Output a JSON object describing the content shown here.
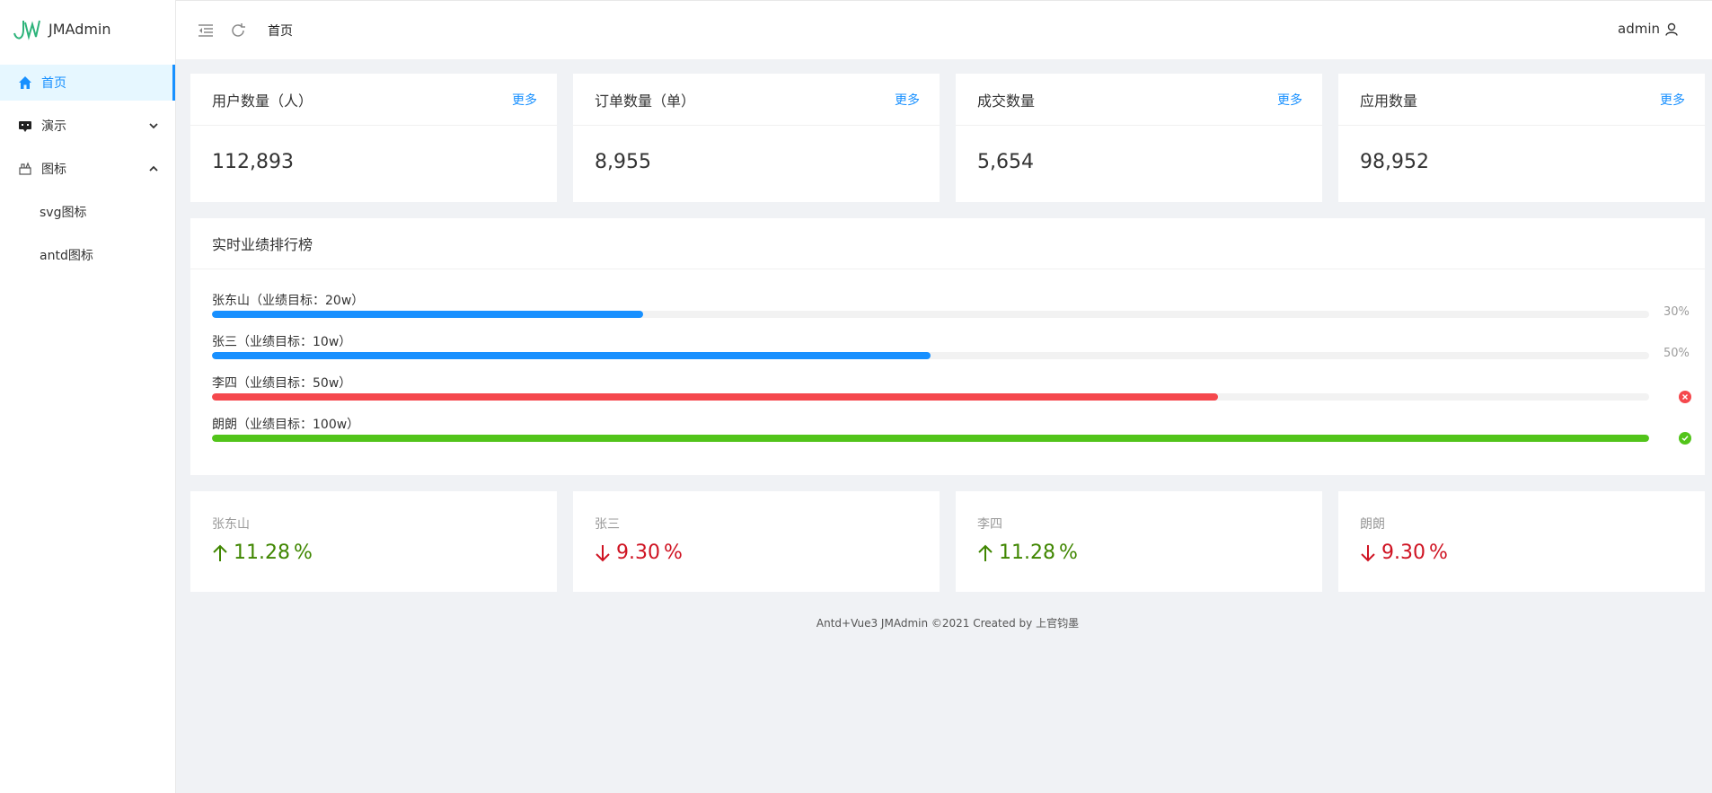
{
  "app": {
    "title": "JMAdmin"
  },
  "sidebar": {
    "items": [
      {
        "label": "首页",
        "icon": "home-icon",
        "active": true
      },
      {
        "label": "演示",
        "icon": "demo-icon",
        "expanded": false
      },
      {
        "label": "图标",
        "icon": "icons-icon",
        "expanded": true,
        "children": [
          {
            "label": "svg图标"
          },
          {
            "label": "antd图标"
          }
        ]
      }
    ]
  },
  "header": {
    "breadcrumb": "首页",
    "user": "admin",
    "icons": [
      "menu-fold-icon",
      "refresh-icon",
      "user-icon"
    ]
  },
  "stats": [
    {
      "title": "用户数量（人）",
      "more": "更多",
      "value": "112,893"
    },
    {
      "title": "订单数量（单）",
      "more": "更多",
      "value": "8,955"
    },
    {
      "title": "成交数量",
      "more": "更多",
      "value": "5,654"
    },
    {
      "title": "应用数量",
      "more": "更多",
      "value": "98,952"
    }
  ],
  "ranking": {
    "title": "实时业绩排行榜",
    "items": [
      {
        "label": "张东山（业绩目标：20w）",
        "percent": 30,
        "info": "30%",
        "status": "normal",
        "color": "#1890ff"
      },
      {
        "label": "张三（业绩目标：10w）",
        "percent": 50,
        "info": "50%",
        "status": "normal",
        "color": "#1890ff"
      },
      {
        "label": "李四（业绩目标：50w）",
        "percent": 70,
        "info": "",
        "status": "exception",
        "color": "#f5484d"
      },
      {
        "label": "朗朗（业绩目标：100w）",
        "percent": 100,
        "info": "",
        "status": "success",
        "color": "#52c41a"
      }
    ]
  },
  "trends": [
    {
      "name": "张东山",
      "value": "11.28",
      "suffix": "%",
      "direction": "up"
    },
    {
      "name": "张三",
      "value": "9.30",
      "suffix": "%",
      "direction": "down"
    },
    {
      "name": "李四",
      "value": "11.28",
      "suffix": "%",
      "direction": "up"
    },
    {
      "name": "朗朗",
      "value": "9.30",
      "suffix": "%",
      "direction": "down"
    }
  ],
  "colors": {
    "primary": "#1890ff",
    "up": "#3f8600",
    "down": "#cf1322",
    "exception": "#f5484d",
    "success": "#52c41a"
  },
  "footer": "Antd+Vue3 JMAdmin ©2021 Created by 上官钧墨"
}
